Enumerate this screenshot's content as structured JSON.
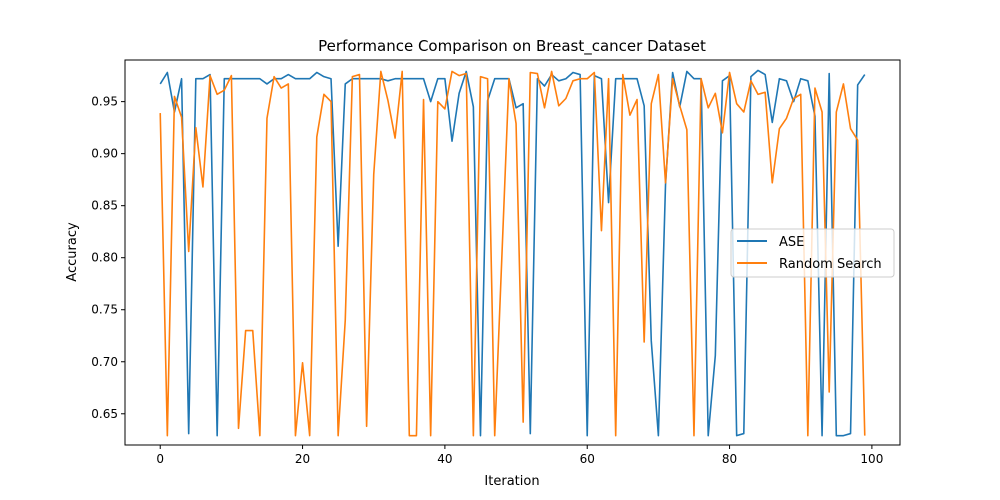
{
  "chart_data": {
    "type": "line",
    "title": "Performance Comparison on Breast_cancer Dataset",
    "xlabel": "Iteration",
    "ylabel": "Accuracy",
    "xlim": [
      -4.95,
      103.95
    ],
    "ylim": [
      0.62,
      0.99
    ],
    "xticks": [
      0,
      20,
      40,
      60,
      80,
      100
    ],
    "yticks": [
      0.65,
      0.7,
      0.75,
      0.8,
      0.85,
      0.9,
      0.95
    ],
    "ytick_labels": [
      "0.65",
      "0.70",
      "0.75",
      "0.80",
      "0.85",
      "0.90",
      "0.95"
    ],
    "legend_position": "center-right",
    "series": [
      {
        "name": "ASE",
        "color": "#1f77b4",
        "values": [
          0.967,
          0.978,
          0.94,
          0.972,
          0.631,
          0.972,
          0.972,
          0.976,
          0.629,
          0.972,
          0.972,
          0.972,
          0.972,
          0.972,
          0.972,
          0.967,
          0.972,
          0.972,
          0.976,
          0.972,
          0.972,
          0.972,
          0.978,
          0.974,
          0.972,
          0.811,
          0.967,
          0.972,
          0.972,
          0.972,
          0.972,
          0.972,
          0.97,
          0.972,
          0.972,
          0.972,
          0.972,
          0.972,
          0.95,
          0.972,
          0.972,
          0.912,
          0.958,
          0.979,
          0.945,
          0.629,
          0.951,
          0.972,
          0.972,
          0.972,
          0.944,
          0.948,
          0.631,
          0.972,
          0.965,
          0.976,
          0.97,
          0.972,
          0.978,
          0.976,
          0.629,
          0.975,
          0.972,
          0.853,
          0.972,
          0.972,
          0.972,
          0.972,
          0.946,
          0.72,
          0.629,
          0.87,
          0.978,
          0.945,
          0.979,
          0.972,
          0.972,
          0.629,
          0.706,
          0.97,
          0.975,
          0.629,
          0.631,
          0.974,
          0.98,
          0.976,
          0.93,
          0.972,
          0.97,
          0.95,
          0.972,
          0.97,
          0.936,
          0.629,
          0.977,
          0.629,
          0.629,
          0.631,
          0.966,
          0.976
        ]
      },
      {
        "name": "Random Search",
        "color": "#ff7f0e",
        "values": [
          0.939,
          0.629,
          0.955,
          0.935,
          0.806,
          0.925,
          0.868,
          0.975,
          0.957,
          0.961,
          0.975,
          0.636,
          0.73,
          0.73,
          0.629,
          0.934,
          0.974,
          0.963,
          0.967,
          0.629,
          0.699,
          0.629,
          0.916,
          0.957,
          0.95,
          0.629,
          0.74,
          0.974,
          0.976,
          0.638,
          0.88,
          0.979,
          0.951,
          0.915,
          0.979,
          0.629,
          0.629,
          0.952,
          0.629,
          0.95,
          0.943,
          0.979,
          0.975,
          0.977,
          0.629,
          0.974,
          0.972,
          0.629,
          0.8,
          0.972,
          0.929,
          0.642,
          0.978,
          0.977,
          0.944,
          0.979,
          0.946,
          0.953,
          0.97,
          0.972,
          0.972,
          0.978,
          0.826,
          0.972,
          0.629,
          0.976,
          0.937,
          0.952,
          0.719,
          0.948,
          0.976,
          0.872,
          0.972,
          0.946,
          0.923,
          0.629,
          0.972,
          0.944,
          0.958,
          0.92,
          0.978,
          0.948,
          0.94,
          0.97,
          0.957,
          0.959,
          0.872,
          0.924,
          0.934,
          0.953,
          0.957,
          0.629,
          0.963,
          0.94,
          0.671,
          0.94,
          0.967,
          0.924,
          0.913,
          0.629
        ]
      }
    ]
  }
}
